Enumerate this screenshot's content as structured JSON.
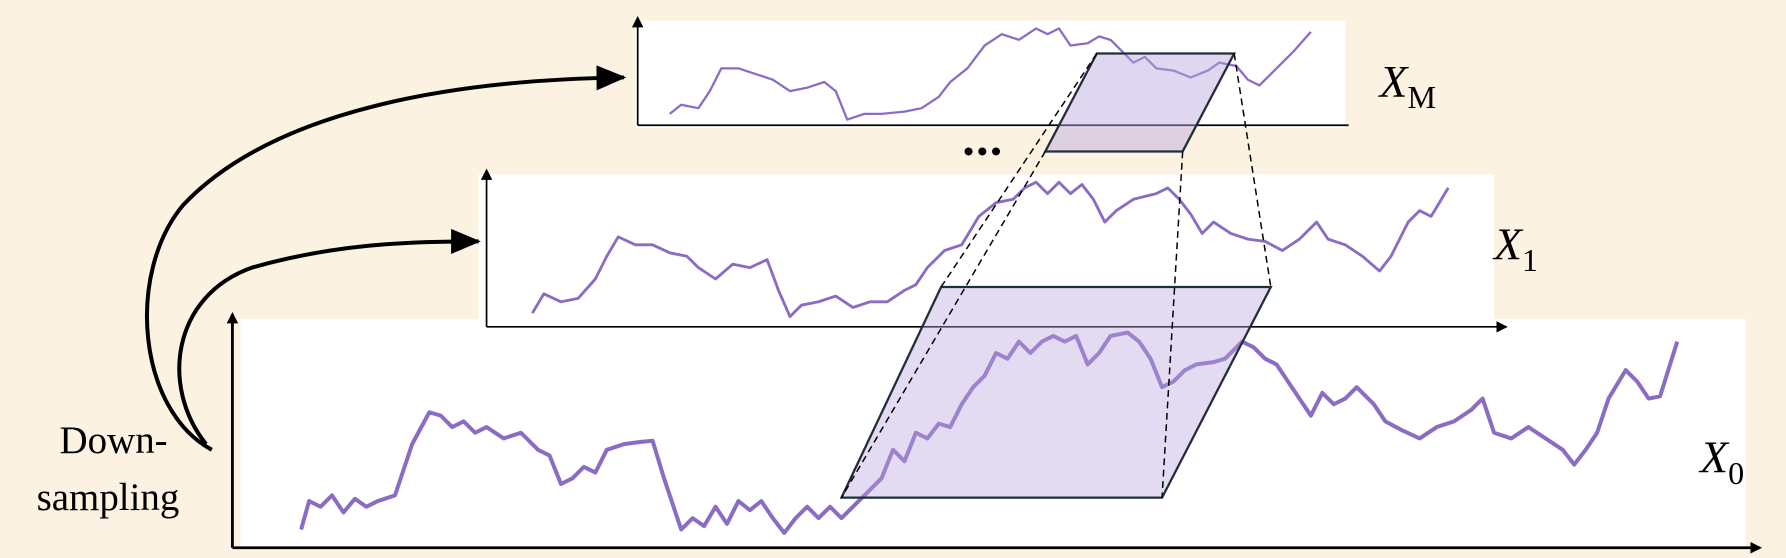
{
  "downsampling_label": {
    "line1": "Down-",
    "line2": "sampling"
  },
  "scales": [
    {
      "symbol": "X",
      "subscript": "M"
    },
    {
      "symbol": "X",
      "subscript": "1"
    },
    {
      "symbol": "X",
      "subscript": "0"
    }
  ]
}
